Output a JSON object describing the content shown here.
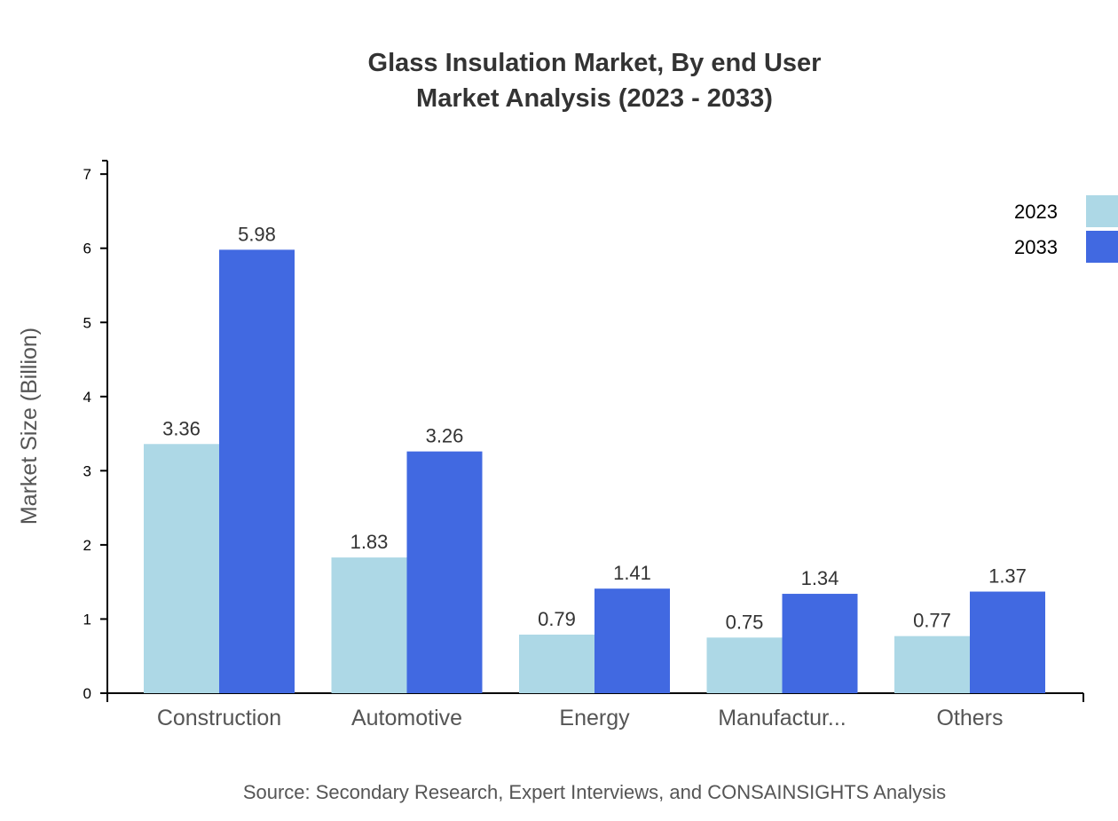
{
  "chart_data": {
    "type": "bar",
    "title": "Glass Insulation Market, By end User",
    "subtitle": "Market Analysis (2023 - 2033)",
    "xlabel": "",
    "ylabel": "Market Size (Billion)",
    "ylim": [
      0,
      7
    ],
    "yticks": [
      "0",
      "1",
      "2",
      "3",
      "4",
      "5",
      "6",
      "7"
    ],
    "categories": [
      "Construction",
      "Automotive",
      "Energy",
      "Manufactur...",
      "Others"
    ],
    "series": [
      {
        "name": "2023",
        "color": "#add8e6",
        "values": [
          3.36,
          1.83,
          0.79,
          0.75,
          0.77
        ]
      },
      {
        "name": "2033",
        "color": "#4169e1",
        "values": [
          5.98,
          3.26,
          1.41,
          1.34,
          1.37
        ]
      }
    ],
    "legend_position": "top-right",
    "grid": false,
    "source": "Source: Secondary Research, Expert Interviews, and CONSAINSIGHTS Analysis"
  }
}
